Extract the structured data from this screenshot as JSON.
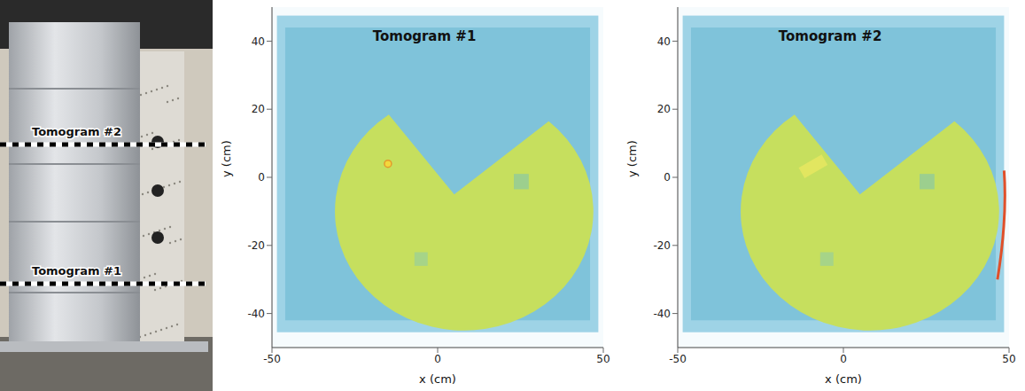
{
  "photo": {
    "labels": [
      "Tomogram #2",
      "Tomogram #1"
    ]
  },
  "chart_data": [
    {
      "type": "image",
      "title": "Tomogram #1",
      "x_label": "x (cm)",
      "y_label": "y (cm)",
      "xlim": [
        -50,
        50
      ],
      "xticks": [
        -50,
        0,
        50
      ],
      "ylim": [
        -50,
        50
      ],
      "yticks": [
        -40,
        -20,
        0,
        20,
        40
      ]
    },
    {
      "type": "image",
      "title": "Tomogram #2",
      "x_label": "x (cm)",
      "y_label": "y (cm)",
      "xlim": [
        -50,
        50
      ],
      "xticks": [
        -50,
        0,
        50
      ],
      "ylim": [
        -50,
        50
      ],
      "yticks": [
        -40,
        -20,
        0,
        20,
        40
      ]
    }
  ]
}
